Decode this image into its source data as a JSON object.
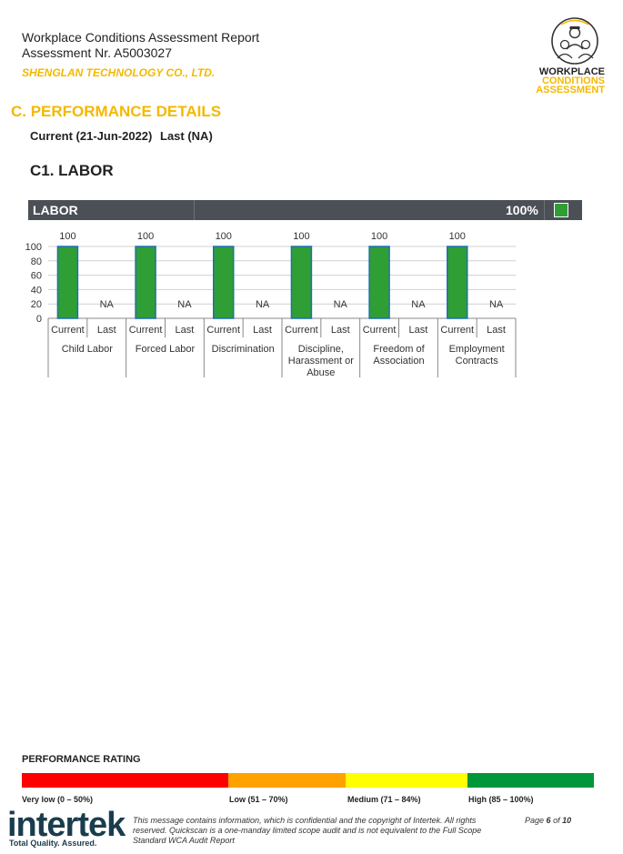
{
  "header": {
    "title_line1": "Workplace Conditions Assessment Report",
    "title_line2": "Assessment Nr. A5003027",
    "company": "SHENGLAN TECHNOLOGY CO., LTD.",
    "logo": {
      "line1": "WORKPLACE",
      "line2": "CONDITIONS",
      "line3": "ASSESSMENT"
    }
  },
  "section": {
    "title": "C. PERFORMANCE DETAILS",
    "current": "Current (21-Jun-2022)",
    "last": "Last (NA)",
    "subtitle": "C1. LABOR"
  },
  "labor_bar": {
    "label": "LABOR",
    "score": "100%",
    "status_color": "#2f9e35"
  },
  "chart_data": {
    "type": "bar",
    "categories": [
      "Child Labor",
      "Forced Labor",
      "Discrimination",
      "Discipline, Harassment or Abuse",
      "Freedom of Association",
      "Employment Contracts"
    ],
    "category_lines": [
      [
        "Child Labor"
      ],
      [
        "Forced Labor"
      ],
      [
        "Discrimination"
      ],
      [
        "Discipline,",
        "Harassment or",
        "Abuse"
      ],
      [
        "Freedom of",
        "Association"
      ],
      [
        "Employment",
        "Contracts"
      ]
    ],
    "subcategories": [
      "Current",
      "Last"
    ],
    "series": [
      {
        "name": "Current",
        "values": [
          100,
          100,
          100,
          100,
          100,
          100
        ],
        "labels": [
          "100",
          "100",
          "100",
          "100",
          "100",
          "100"
        ]
      },
      {
        "name": "Last",
        "values": [
          null,
          null,
          null,
          null,
          null,
          null
        ],
        "labels": [
          "NA",
          "NA",
          "NA",
          "NA",
          "NA",
          "NA"
        ]
      }
    ],
    "yticks": [
      0,
      20,
      40,
      60,
      80,
      100
    ],
    "ylim": [
      0,
      100
    ],
    "grid": true,
    "bar_color": "#2f9e35",
    "bar_edge": "#1f6fb4"
  },
  "performance_rating": {
    "title": "PERFORMANCE RATING",
    "bands": [
      {
        "label": "Very low (0 – 50%)",
        "color": "#ff0000",
        "from": 0,
        "to": 50
      },
      {
        "label": "Low  (51 – 70%)",
        "color": "#ffa200",
        "from": 51,
        "to": 70
      },
      {
        "label": "Medium (71 – 84%)",
        "color": "#ffff00",
        "from": 71,
        "to": 84
      },
      {
        "label": "High (85 – 100%)",
        "color": "#00973a",
        "from": 85,
        "to": 100
      }
    ]
  },
  "footer": {
    "brand": "intertek",
    "tagline": "Total Quality. Assured.",
    "text": "This message contains information, which is confidential and the copyright of Intertek. All rights reserved. Quickscan is a one-manday limited scope audit and is not equivalent to the Full Scope Standard WCA Audit Report",
    "page_prefix": "Page",
    "page": "6",
    "page_of": "of",
    "page_total": "10"
  }
}
